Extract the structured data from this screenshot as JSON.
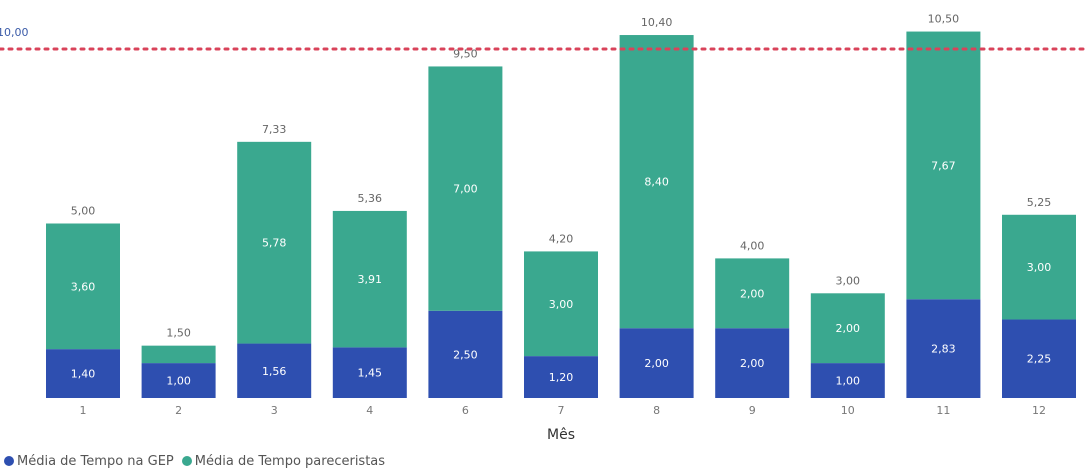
{
  "chart_data": {
    "type": "bar",
    "stacked": true,
    "categories": [
      "1",
      "2",
      "3",
      "4",
      "6",
      "7",
      "8",
      "9",
      "10",
      "11",
      "12"
    ],
    "series": [
      {
        "name": "Média de Tempo na GEP",
        "color": "#2E4FB0",
        "values": [
          1.4,
          1.0,
          1.56,
          1.45,
          2.5,
          1.2,
          2.0,
          2.0,
          1.0,
          2.83,
          2.25
        ],
        "labels": [
          "1,40",
          "1,00",
          "1,56",
          "1,45",
          "2,50",
          "1,20",
          "2,00",
          "2,00",
          "1,00",
          "2,83",
          "2,25"
        ]
      },
      {
        "name": "Média de Tempo pareceristas",
        "color": "#3AA88F",
        "values": [
          3.6,
          0.5,
          5.78,
          3.91,
          7.0,
          3.0,
          8.4,
          2.0,
          2.0,
          7.67,
          3.0
        ],
        "labels": [
          "3,60",
          "",
          "5,78",
          "3,91",
          "7,00",
          "3,00",
          "8,40",
          "2,00",
          "2,00",
          "7,67",
          "3,00"
        ]
      }
    ],
    "totals": [
      5.0,
      1.5,
      7.33,
      5.36,
      9.5,
      4.2,
      10.4,
      4.0,
      3.0,
      10.5,
      5.25
    ],
    "total_labels": [
      "5,00",
      "1,50",
      "7,33",
      "5,36",
      "9,50",
      "4,20",
      "10,40",
      "4,00",
      "3,00",
      "10,50",
      "5,25"
    ],
    "reference_line": {
      "value": 10.0,
      "label": "10,00",
      "color": "#D9435A",
      "style": "dotted"
    },
    "xlabel": "Mês",
    "ylabel": "",
    "ylim": [
      0,
      10.7
    ],
    "grid": false,
    "legend_position": "bottom-left"
  },
  "legend": {
    "items": [
      {
        "label": "Média de Tempo na GEP",
        "color": "#2E4FB0"
      },
      {
        "label": "Média de Tempo pareceristas",
        "color": "#3AA88F"
      }
    ]
  }
}
